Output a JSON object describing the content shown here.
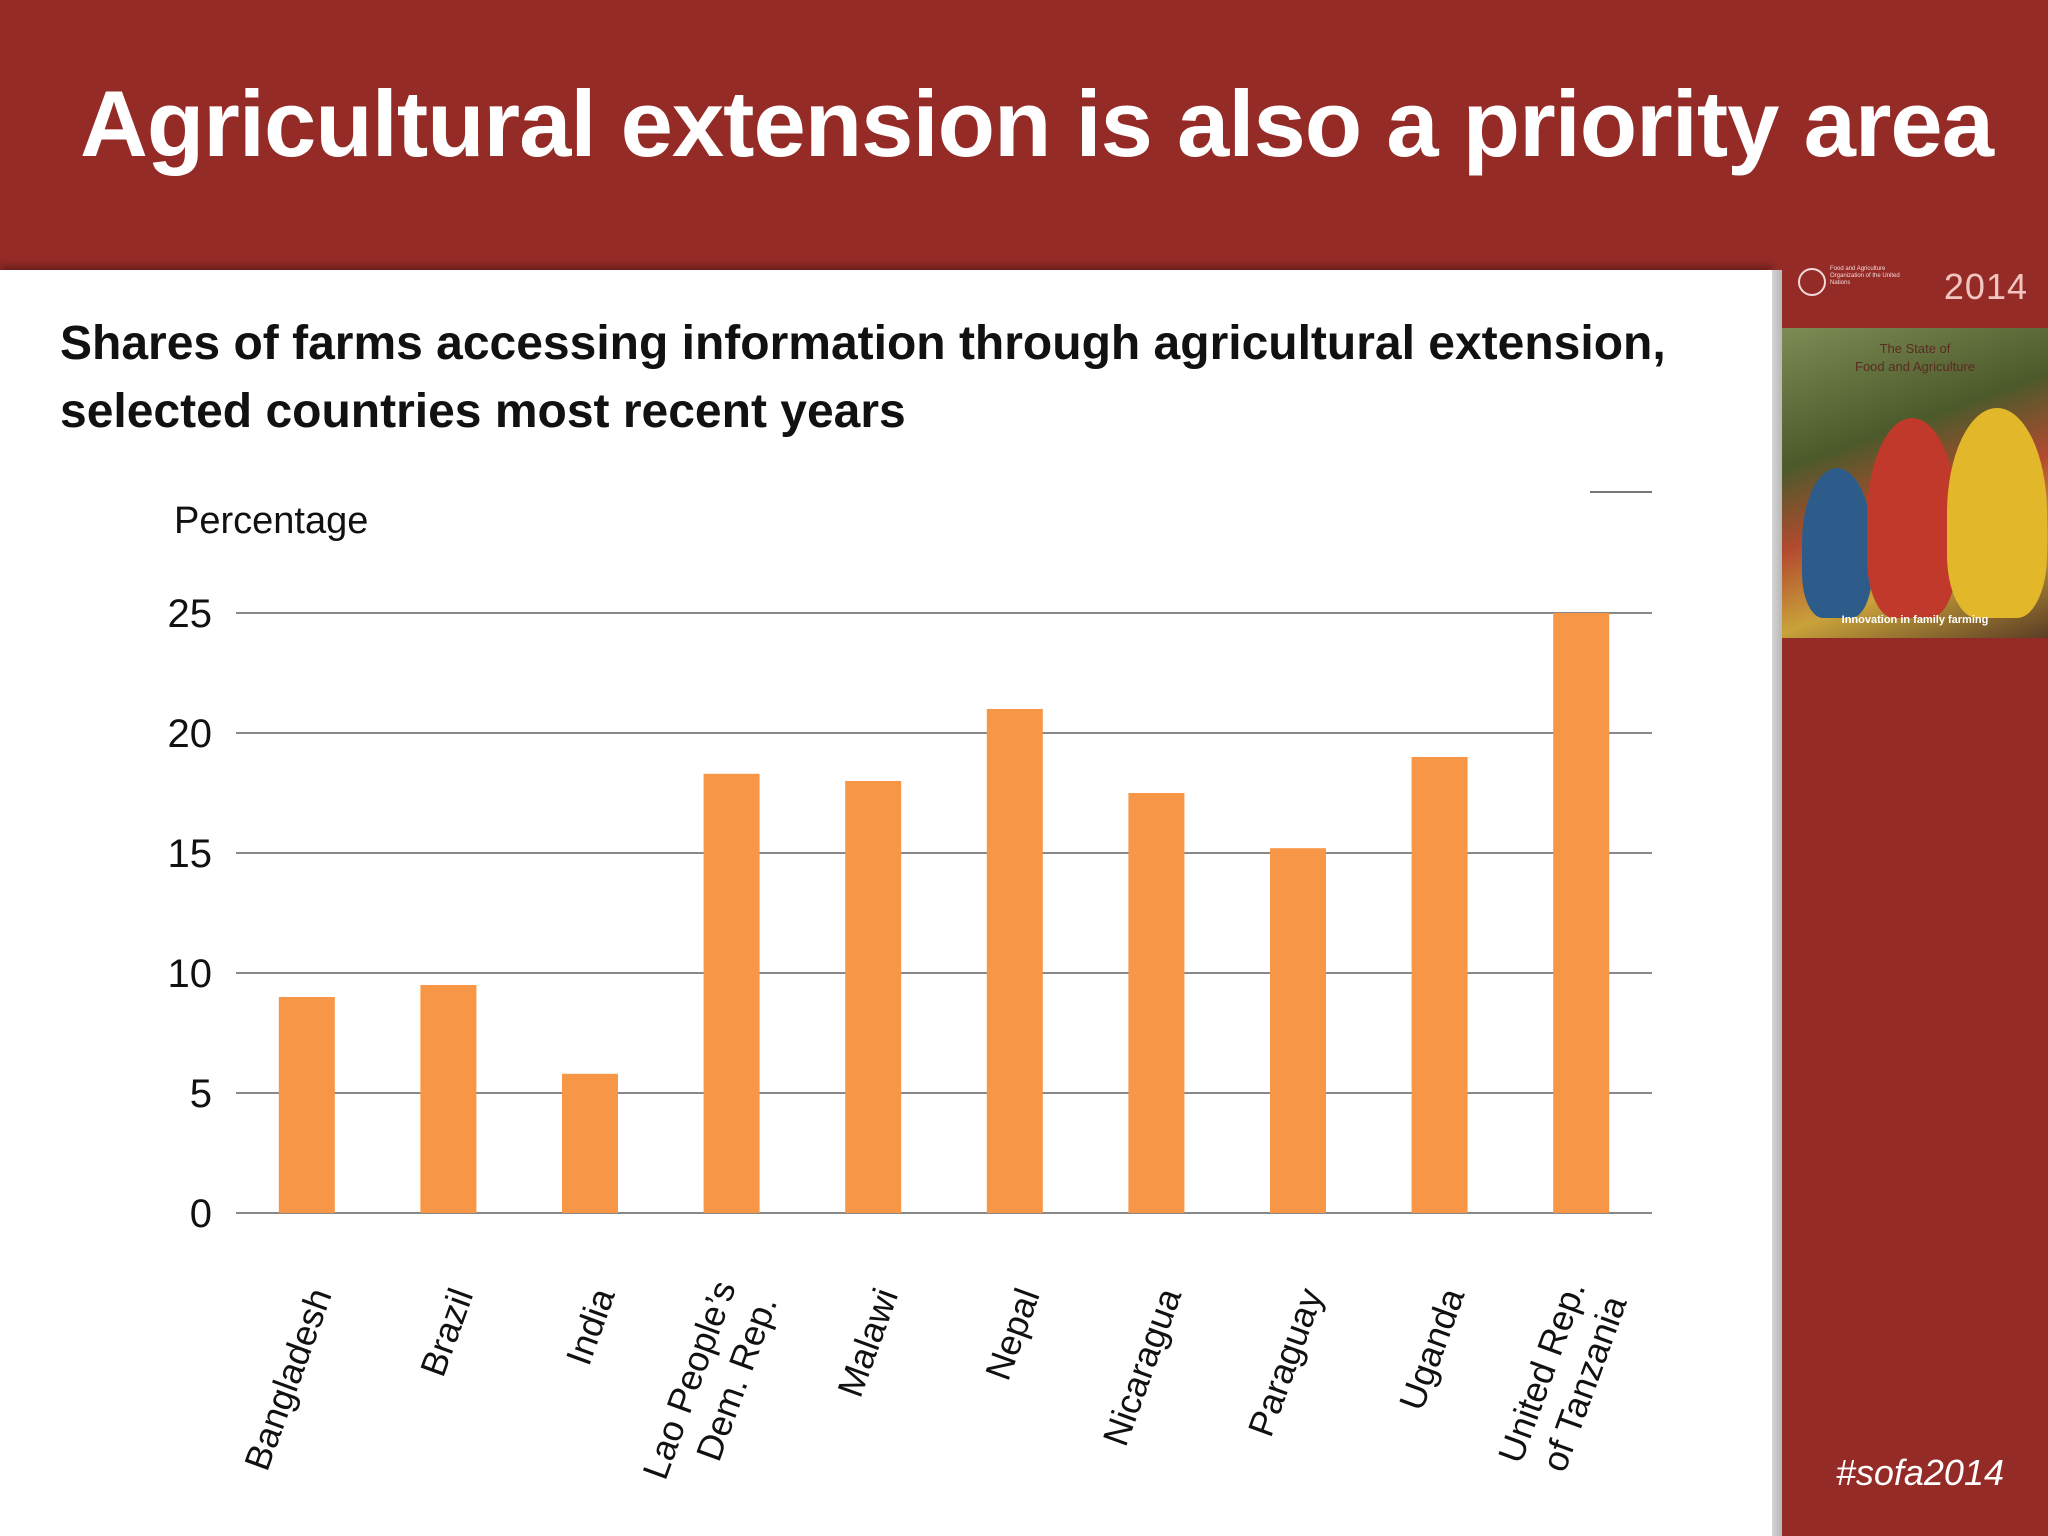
{
  "slide": {
    "title": "Agricultural extension is also a priority area",
    "hashtag": "#sofa2014"
  },
  "cover": {
    "year": "2014",
    "org_text": "Food and Agriculture Organization of the United Nations",
    "title_lines": [
      "The State of",
      "Food and Agriculture"
    ],
    "tagline": "Innovation in family farming"
  },
  "colors": {
    "brand": "#952b27",
    "bar": "#f79646",
    "gridline": "#888888"
  },
  "chart_data": {
    "type": "bar",
    "title_lines": [
      "Shares of farms accessing information through agricultural extension,",
      "selected countries most recent years"
    ],
    "ylabel": "Percentage",
    "xlabel": "",
    "ylim": [
      0,
      25
    ],
    "yticks": [
      0,
      5,
      10,
      15,
      20,
      25
    ],
    "grid": true,
    "legend": "none",
    "categories": [
      "Bangladesh",
      "Brazil",
      "India",
      "Lao People’s\nDem. Rep.",
      "Malawi",
      "Nepal",
      "Nicaragua",
      "Paraguay",
      "Uganda",
      "United Rep.\nof Tanzania"
    ],
    "values": [
      9.0,
      9.5,
      5.8,
      18.3,
      18.0,
      21.0,
      17.5,
      15.2,
      19.0,
      25.0
    ]
  }
}
